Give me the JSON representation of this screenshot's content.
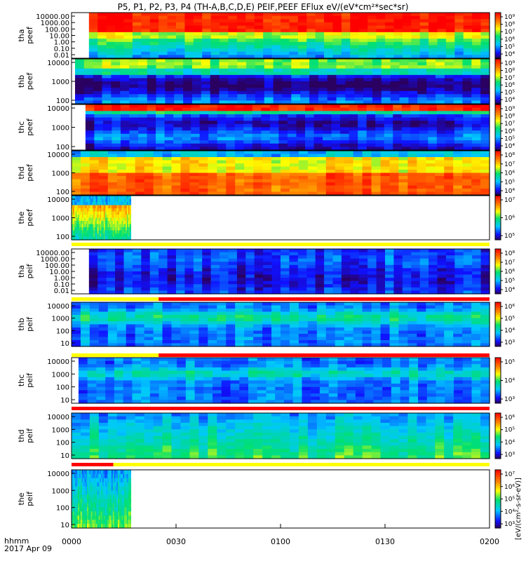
{
  "title": "P5, P1, P2, P3, P4 (TH-A,B,C,D,E) PEIF,PEEF EFlux eV/(eV*cm²*sec*sr)",
  "time_axis": {
    "label_line1": "hhmm",
    "label_line2": "2017 Apr 09",
    "ticks": [
      "0000",
      "0030",
      "0100",
      "0130",
      "0200"
    ],
    "range_minutes": [
      0,
      120
    ]
  },
  "colorbar_label": "[eV/(cm²-s-sr-eV)]",
  "chart_data": [
    {
      "type": "heatmap",
      "name": "tha peef",
      "ylabel": [
        "tha",
        "peef"
      ],
      "yticks": [
        "10000.00",
        "1000.00",
        "100.00",
        "10.00",
        "1.00",
        "0.10",
        "0.01"
      ],
      "yscale": "log",
      "ylim": [
        0.01,
        20000
      ],
      "data_start_min": 5,
      "data_end_min": 120,
      "colorbar_ticks": [
        "10⁹",
        "10⁸",
        "10⁷",
        "10⁶",
        "10⁵",
        "10⁴"
      ]
    },
    {
      "type": "heatmap",
      "name": "thb peef",
      "ylabel": [
        "thb",
        "peef"
      ],
      "yticks": [
        "10000",
        "1000",
        "100"
      ],
      "yscale": "log",
      "ylim": [
        20,
        20000
      ],
      "data_start_min": 1,
      "data_end_min": 120,
      "colorbar_ticks": [
        "10⁹",
        "10⁸",
        "10⁷",
        "10⁶",
        "10⁵",
        "10⁴"
      ]
    },
    {
      "type": "heatmap",
      "name": "thc peef",
      "ylabel": [
        "thc",
        "peef"
      ],
      "yticks": [
        "10000",
        "1000",
        "100"
      ],
      "yscale": "log",
      "ylim": [
        20,
        20000
      ],
      "data_start_min": 4,
      "data_end_min": 120,
      "colorbar_ticks": [
        "10⁹",
        "10⁸",
        "10⁷",
        "10⁶",
        "10⁵",
        "10⁴"
      ]
    },
    {
      "type": "heatmap",
      "name": "thd peef",
      "ylabel": [
        "thd",
        "peef"
      ],
      "yticks": [
        "10000",
        "1000",
        "100"
      ],
      "yscale": "log",
      "ylim": [
        20,
        20000
      ],
      "data_start_min": 0,
      "data_end_min": 120,
      "colorbar_ticks": [
        "10⁸",
        "10⁷",
        "10⁶",
        "10⁵",
        "10⁴"
      ]
    },
    {
      "type": "heatmap",
      "name": "the peef",
      "ylabel": [
        "the",
        "peef"
      ],
      "yticks": [
        "10000",
        "1000",
        "100"
      ],
      "yscale": "log",
      "ylim": [
        20,
        20000
      ],
      "data_start_min": 0,
      "data_end_min": 17,
      "colorbar_ticks": [
        "10⁷",
        "10⁶",
        "10⁵"
      ]
    },
    {
      "type": "heatmap",
      "name": "tha peif",
      "ylabel": [
        "tha",
        "peif"
      ],
      "yticks": [
        "10000.00",
        "1000.00",
        "100.00",
        "10.00",
        "1.00",
        "0.10",
        "0.01"
      ],
      "yscale": "log",
      "ylim": [
        0.01,
        20000
      ],
      "data_start_min": 5,
      "data_end_min": 120,
      "colorbar_ticks": [
        "10⁸",
        "10⁷",
        "10⁶",
        "10⁵",
        "10⁴"
      ]
    },
    {
      "type": "heatmap",
      "name": "thb peif",
      "ylabel": [
        "thb",
        "peif"
      ],
      "yticks": [
        "10000",
        "1000",
        "100",
        "10"
      ],
      "yscale": "log",
      "ylim": [
        5,
        20000
      ],
      "data_start_min": 0,
      "data_end_min": 120,
      "colorbar_ticks": [
        "10⁶",
        "10⁵",
        "10⁴",
        "10³"
      ]
    },
    {
      "type": "heatmap",
      "name": "thc peif",
      "ylabel": [
        "thc",
        "peif"
      ],
      "yticks": [
        "10000",
        "1000",
        "100",
        "10"
      ],
      "yscale": "log",
      "ylim": [
        5,
        20000
      ],
      "data_start_min": 2,
      "data_end_min": 120,
      "colorbar_ticks": [
        "10⁵",
        "10⁴",
        "10³"
      ]
    },
    {
      "type": "heatmap",
      "name": "thd peif",
      "ylabel": [
        "thd",
        "peif"
      ],
      "yticks": [
        "10000",
        "1000",
        "100",
        "10"
      ],
      "yscale": "log",
      "ylim": [
        5,
        20000
      ],
      "data_start_min": 0,
      "data_end_min": 120,
      "colorbar_ticks": [
        "10⁶",
        "10⁵",
        "10⁴",
        "10³"
      ]
    },
    {
      "type": "heatmap",
      "name": "the peif",
      "ylabel": [
        "the",
        "peif"
      ],
      "yticks": [
        "10000",
        "1000",
        "100",
        "10"
      ],
      "yscale": "log",
      "ylim": [
        5,
        20000
      ],
      "data_start_min": 0,
      "data_end_min": 17,
      "colorbar_ticks": [
        "10⁷",
        "10⁶",
        "10⁵",
        "10⁴",
        "10³"
      ]
    }
  ],
  "status_bars": [
    {
      "after_panel": 4,
      "segments": [
        {
          "from_min": 0,
          "to_min": 120,
          "color": "#ffff00"
        }
      ]
    },
    {
      "after_panel": 5,
      "segments": [
        {
          "from_min": 0,
          "to_min": 25,
          "color": "#ffff00"
        },
        {
          "from_min": 25,
          "to_min": 120,
          "color": "#ff0000"
        }
      ]
    },
    {
      "after_panel": 6,
      "segments": [
        {
          "from_min": 0,
          "to_min": 25,
          "color": "#ffff00"
        },
        {
          "from_min": 25,
          "to_min": 120,
          "color": "#ff0000"
        }
      ]
    },
    {
      "after_panel": 7,
      "segments": [
        {
          "from_min": 0,
          "to_min": 120,
          "color": "#ff0000"
        }
      ]
    },
    {
      "after_panel": 8,
      "segments": [
        {
          "from_min": 0,
          "to_min": 12,
          "color": "#ff0000"
        },
        {
          "from_min": 12,
          "to_min": 120,
          "color": "#ffff00"
        }
      ]
    }
  ]
}
